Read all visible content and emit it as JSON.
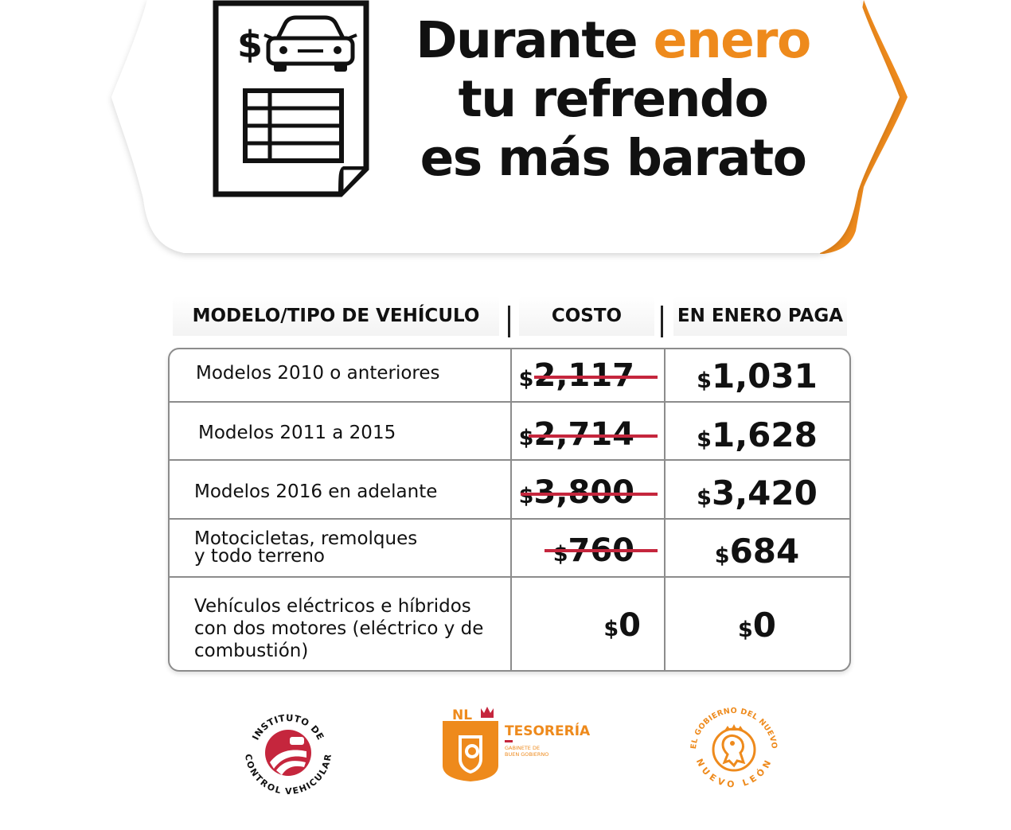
{
  "headline": {
    "line1_prefix": "Durante ",
    "line1_accent": "enero",
    "line2": "tu refrendo",
    "line3": "es más barato"
  },
  "icon": "document-car-price-icon",
  "icon_dollar": "$",
  "colors": {
    "accent": "#ee8a1c",
    "strike": "#c5263d",
    "seal_red": "#c5263d",
    "tesoreria_orange": "#ee8a1c"
  },
  "table": {
    "headers": {
      "model": "MODELO/TIPO DE VEHÍCULO",
      "cost": "COSTO",
      "january": "EN ENERO PAGA"
    },
    "rows": [
      {
        "label_lines": [
          "Modelos 2010 o anteriores"
        ],
        "cost_currency": "$",
        "cost": "2,117",
        "cost_struck": true,
        "pay_currency": "$",
        "pay": "1,031"
      },
      {
        "label_lines": [
          "Modelos 2011 a 2015"
        ],
        "cost_currency": "$",
        "cost": "2,714",
        "cost_struck": true,
        "pay_currency": "$",
        "pay": "1,628"
      },
      {
        "label_lines": [
          "Modelos 2016 en adelante"
        ],
        "cost_currency": "$",
        "cost": "3,800",
        "cost_struck": true,
        "pay_currency": "$",
        "pay": "3,420"
      },
      {
        "label_lines": [
          "Motocicletas, remolques",
          "y todo terreno"
        ],
        "cost_currency": "$",
        "cost": "760",
        "cost_struck": true,
        "pay_currency": "$",
        "pay": "684"
      },
      {
        "label_lines": [
          "Vehículos eléctricos e híbridos",
          "con dos motores (eléctrico y de",
          "combustión)"
        ],
        "cost_currency": "$",
        "cost": "0",
        "cost_struck": false,
        "pay_currency": "$",
        "pay": "0"
      }
    ]
  },
  "logos": {
    "icv": {
      "text_top": "INSTITUTO DE",
      "text_bottom": "CONTROL VEHICULAR"
    },
    "tesoreria": {
      "badge": "NL",
      "title": "TESORERÍA",
      "subtitle_1": "GABINETE DE",
      "subtitle_2": "BUEN GOBIERNO"
    },
    "gobierno": {
      "text_top": "EL GOBIERNO DEL NUEVO",
      "text_bottom": "NUEVO LEÓN"
    }
  }
}
